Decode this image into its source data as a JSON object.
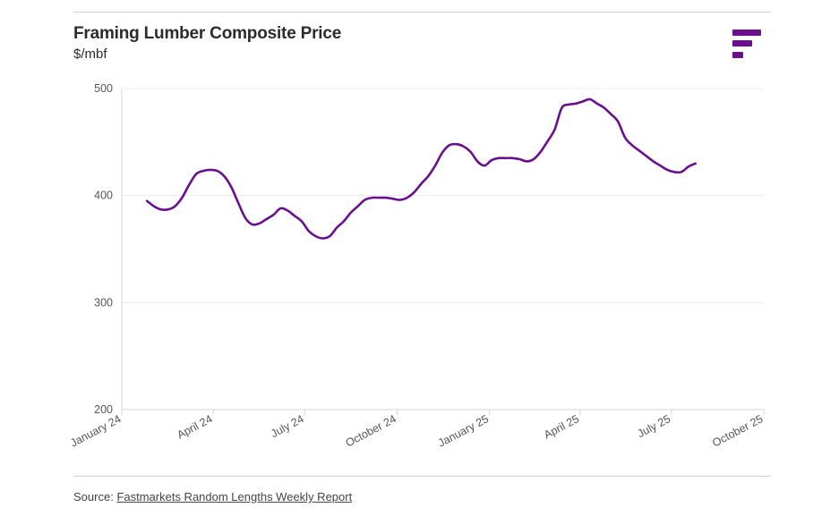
{
  "header": {
    "title": "Framing Lumber Composite Price",
    "subtitle": "$/mbf"
  },
  "logo": {
    "icon": "fastmarkets-logo-icon",
    "color": "#6a0f8e"
  },
  "footer": {
    "source_prefix": "Source:",
    "source_link": "Fastmarkets Random Lengths Weekly Report"
  },
  "chart_data": {
    "type": "line",
    "title": "Framing Lumber Composite Price",
    "ylabel": "$/mbf",
    "xlabel": "",
    "ylim": [
      200,
      500
    ],
    "yticks": [
      200,
      300,
      400,
      500
    ],
    "xlim": [
      "2024-01-01",
      "2025-10-01"
    ],
    "xticks": [
      {
        "date": "2024-01-01",
        "label": "January 24"
      },
      {
        "date": "2024-04-01",
        "label": "April 24"
      },
      {
        "date": "2024-07-01",
        "label": "July 24"
      },
      {
        "date": "2024-10-01",
        "label": "October 24"
      },
      {
        "date": "2025-01-01",
        "label": "January 25"
      },
      {
        "date": "2025-04-01",
        "label": "April 25"
      },
      {
        "date": "2025-07-01",
        "label": "July 25"
      },
      {
        "date": "2025-10-01",
        "label": "October 25"
      }
    ],
    "grid": true,
    "line_color": "#6a0f8e",
    "series": [
      {
        "points": [
          [
            "2024-01-26",
            395
          ],
          [
            "2024-02-02",
            390
          ],
          [
            "2024-02-09",
            387
          ],
          [
            "2024-02-16",
            387
          ],
          [
            "2024-02-23",
            390
          ],
          [
            "2024-03-01",
            398
          ],
          [
            "2024-03-08",
            410
          ],
          [
            "2024-03-15",
            420
          ],
          [
            "2024-03-22",
            423
          ],
          [
            "2024-03-29",
            424
          ],
          [
            "2024-04-05",
            423
          ],
          [
            "2024-04-12",
            418
          ],
          [
            "2024-04-19",
            408
          ],
          [
            "2024-04-26",
            393
          ],
          [
            "2024-05-03",
            379
          ],
          [
            "2024-05-10",
            373
          ],
          [
            "2024-05-17",
            374
          ],
          [
            "2024-05-24",
            378
          ],
          [
            "2024-05-31",
            382
          ],
          [
            "2024-06-07",
            388
          ],
          [
            "2024-06-14",
            386
          ],
          [
            "2024-06-21",
            381
          ],
          [
            "2024-06-28",
            376
          ],
          [
            "2024-07-05",
            367
          ],
          [
            "2024-07-12",
            362
          ],
          [
            "2024-07-19",
            360
          ],
          [
            "2024-07-26",
            362
          ],
          [
            "2024-08-02",
            370
          ],
          [
            "2024-08-09",
            376
          ],
          [
            "2024-08-16",
            384
          ],
          [
            "2024-08-23",
            390
          ],
          [
            "2024-08-30",
            396
          ],
          [
            "2024-09-06",
            398
          ],
          [
            "2024-09-13",
            398
          ],
          [
            "2024-09-20",
            398
          ],
          [
            "2024-09-27",
            397
          ],
          [
            "2024-10-04",
            396
          ],
          [
            "2024-10-11",
            398
          ],
          [
            "2024-10-18",
            403
          ],
          [
            "2024-10-25",
            411
          ],
          [
            "2024-11-01",
            418
          ],
          [
            "2024-11-08",
            428
          ],
          [
            "2024-11-15",
            440
          ],
          [
            "2024-11-22",
            447
          ],
          [
            "2024-11-29",
            448
          ],
          [
            "2024-12-06",
            446
          ],
          [
            "2024-12-13",
            441
          ],
          [
            "2024-12-20",
            432
          ],
          [
            "2024-12-27",
            428
          ],
          [
            "2025-01-03",
            433
          ],
          [
            "2025-01-10",
            435
          ],
          [
            "2025-01-17",
            435
          ],
          [
            "2025-01-24",
            435
          ],
          [
            "2025-01-31",
            434
          ],
          [
            "2025-02-07",
            432
          ],
          [
            "2025-02-14",
            434
          ],
          [
            "2025-02-21",
            441
          ],
          [
            "2025-02-28",
            451
          ],
          [
            "2025-03-07",
            462
          ],
          [
            "2025-03-14",
            482
          ],
          [
            "2025-03-21",
            485
          ],
          [
            "2025-03-28",
            486
          ],
          [
            "2025-04-04",
            488
          ],
          [
            "2025-04-11",
            490
          ],
          [
            "2025-04-18",
            486
          ],
          [
            "2025-04-25",
            482
          ],
          [
            "2025-05-02",
            476
          ],
          [
            "2025-05-09",
            469
          ],
          [
            "2025-05-16",
            454
          ],
          [
            "2025-05-23",
            447
          ],
          [
            "2025-05-30",
            442
          ],
          [
            "2025-06-06",
            437
          ],
          [
            "2025-06-13",
            432
          ],
          [
            "2025-06-20",
            428
          ],
          [
            "2025-06-27",
            424
          ],
          [
            "2025-07-04",
            422
          ],
          [
            "2025-07-11",
            422
          ],
          [
            "2025-07-18",
            427
          ],
          [
            "2025-07-25",
            430
          ]
        ]
      }
    ]
  }
}
